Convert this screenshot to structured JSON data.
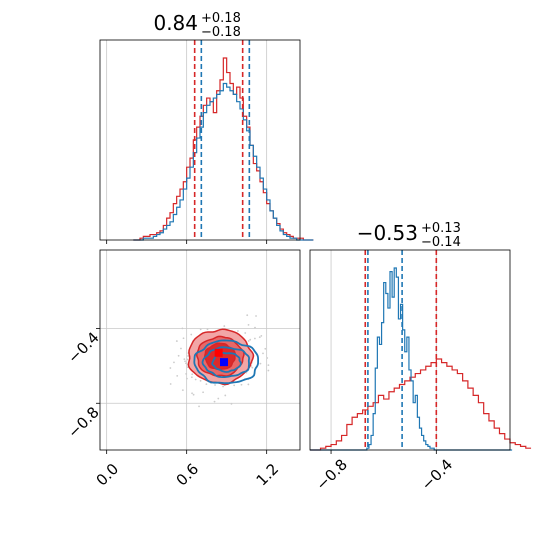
{
  "colors": {
    "red": "#d62728",
    "blue": "#1f77b4",
    "red_fill_outer": "#f2a6a6",
    "red_fill_mid": "#e86868",
    "red_fill_inner": "#db2a2a",
    "grid": "#c8c8c8",
    "red_marker": "#ff0000",
    "blue_marker": "#0000ff"
  },
  "chart_data": [
    {
      "type": "histogram",
      "panel": "top-left",
      "title": {
        "main": "0.84",
        "sup": "+0.18",
        "sub": "−0.18"
      },
      "xlim": [
        -0.05,
        1.45
      ],
      "x_ticks": [
        0.0,
        0.6,
        1.2
      ],
      "series": [
        {
          "color": "red",
          "quantiles": [
            0.66,
            1.02
          ],
          "bin_start": 0.2,
          "bin_width": 0.025,
          "counts": [
            0,
            0,
            1,
            2,
            2,
            3,
            3,
            4,
            5,
            8,
            12,
            15,
            20,
            24,
            28,
            32,
            40,
            45,
            55,
            62,
            68,
            74,
            78,
            76,
            70,
            82,
            88,
            100,
            92,
            86,
            80,
            84,
            78,
            68,
            62,
            52,
            42,
            38,
            32,
            26,
            20,
            16,
            12,
            9,
            6,
            4,
            3,
            2,
            1,
            1,
            1,
            0,
            0,
            0
          ]
        },
        {
          "color": "blue",
          "quantiles": [
            0.71,
            1.07
          ],
          "bin_start": 0.2,
          "bin_width": 0.025,
          "counts": [
            0,
            0,
            0,
            1,
            1,
            1,
            2,
            3,
            4,
            6,
            8,
            10,
            14,
            18,
            22,
            28,
            34,
            40,
            48,
            56,
            62,
            70,
            74,
            76,
            78,
            80,
            82,
            86,
            84,
            82,
            80,
            76,
            72,
            66,
            60,
            52,
            46,
            40,
            34,
            28,
            22,
            16,
            12,
            8,
            5,
            3,
            2,
            1,
            1,
            0,
            0,
            0,
            0,
            0
          ]
        }
      ]
    },
    {
      "type": "contour",
      "panel": "bottom-left",
      "xlim": [
        -0.05,
        1.45
      ],
      "ylim": [
        -1.05,
        0.02
      ],
      "x_ticks": [
        0.0,
        0.6,
        1.2
      ],
      "y_ticks": [
        -0.4,
        -0.8
      ],
      "series": [
        {
          "color": "red",
          "marker": [
            0.84,
            -0.53
          ],
          "levels": [
            {
              "rx": 0.55,
              "ry": 0.33
            },
            {
              "rx": 0.4,
              "ry": 0.24
            },
            {
              "rx": 0.26,
              "ry": 0.16
            }
          ],
          "center": [
            0.85,
            -0.55
          ]
        },
        {
          "color": "blue",
          "marker": [
            0.88,
            -0.58
          ],
          "levels": [
            {
              "rx": 0.55,
              "ry": 0.16
            },
            {
              "rx": 0.4,
              "ry": 0.11
            },
            {
              "rx": 0.24,
              "ry": 0.07
            }
          ],
          "center": [
            0.9,
            -0.58
          ]
        }
      ]
    },
    {
      "type": "histogram",
      "panel": "bottom-right",
      "title": {
        "main": "−0.53",
        "sup": "+0.13",
        "sub": "−0.14"
      },
      "xlim": [
        -0.88,
        -0.12
      ],
      "x_ticks": [
        -0.8,
        -0.4
      ],
      "series": [
        {
          "color": "red",
          "quantiles": [
            -0.67,
            -0.4
          ],
          "bin_start": -0.88,
          "bin_width": 0.02,
          "counts": [
            0,
            0,
            1,
            2,
            3,
            5,
            8,
            14,
            18,
            20,
            22,
            24,
            26,
            30,
            28,
            32,
            34,
            36,
            38,
            40,
            42,
            44,
            46,
            48,
            50,
            48,
            46,
            44,
            42,
            38,
            34,
            30,
            26,
            20,
            16,
            12,
            9,
            6,
            4,
            3,
            2,
            1
          ]
        },
        {
          "color": "blue",
          "quantiles": [
            -0.66,
            -0.53
          ],
          "bin_start": -0.88,
          "bin_width": 0.008,
          "counts": [
            0,
            0,
            0,
            0,
            0,
            0,
            0,
            0,
            0,
            0,
            0,
            0,
            0,
            0,
            0,
            0,
            0,
            0,
            0,
            0,
            0,
            0,
            0,
            0,
            0,
            0,
            0,
            1,
            3,
            8,
            20,
            45,
            62,
            58,
            70,
            92,
            86,
            78,
            98,
            84,
            100,
            95,
            72,
            80,
            66,
            54,
            62,
            44,
            38,
            26,
            30,
            18,
            12,
            8,
            5,
            3,
            2,
            1,
            1,
            0,
            0,
            0,
            0,
            0,
            0,
            0,
            0,
            0,
            0,
            0,
            0,
            0,
            0,
            0,
            0,
            0,
            0,
            0,
            0,
            0,
            0,
            0,
            0,
            0,
            0,
            0,
            0,
            0,
            0,
            0,
            0,
            0,
            0,
            0,
            0,
            0
          ]
        }
      ]
    }
  ]
}
